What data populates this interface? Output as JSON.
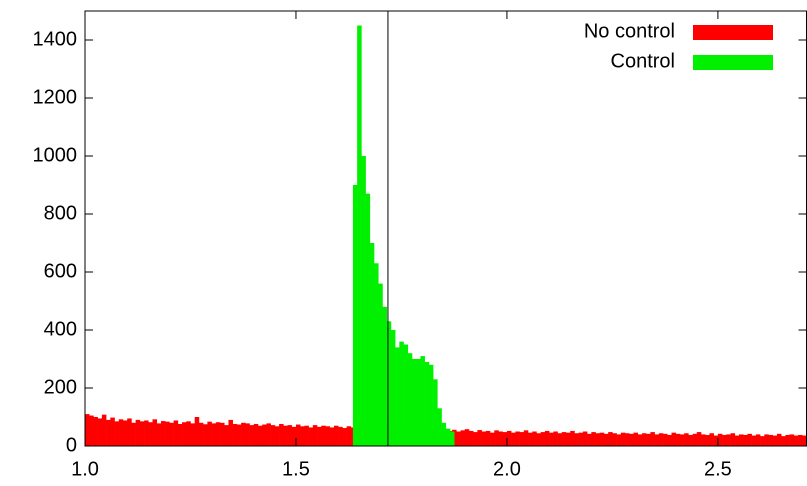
{
  "chart_data": {
    "type": "histogram",
    "xlim": [
      1.0,
      2.71
    ],
    "ylim": [
      0,
      1500
    ],
    "xticks": [
      {
        "value": 1.0,
        "label": "1.0"
      },
      1.5,
      {
        "value": 2.0,
        "label": "2.0"
      },
      2.5
    ],
    "yticks": [
      0,
      200,
      400,
      600,
      800,
      1000,
      1200,
      1400
    ],
    "vline": 1.718,
    "legend": "top-right",
    "series": [
      {
        "name": "No control",
        "color": "#ff0000",
        "bins": [
          1.0,
          1.01,
          1.02,
          1.03,
          1.04,
          1.05,
          1.06,
          1.07,
          1.08,
          1.09,
          1.1,
          1.11,
          1.12,
          1.13,
          1.14,
          1.15,
          1.16,
          1.17,
          1.18,
          1.19,
          1.2,
          1.21,
          1.22,
          1.23,
          1.24,
          1.25,
          1.26,
          1.27,
          1.28,
          1.29,
          1.3,
          1.31,
          1.32,
          1.33,
          1.34,
          1.35,
          1.36,
          1.37,
          1.38,
          1.39,
          1.4,
          1.41,
          1.42,
          1.43,
          1.44,
          1.45,
          1.46,
          1.47,
          1.48,
          1.49,
          1.5,
          1.51,
          1.52,
          1.53,
          1.54,
          1.55,
          1.56,
          1.57,
          1.58,
          1.59,
          1.6,
          1.61,
          1.62,
          1.63,
          1.64,
          1.65,
          1.66,
          1.67,
          1.68,
          1.69,
          1.7,
          1.71,
          1.72,
          1.73,
          1.74,
          1.75,
          1.76,
          1.77,
          1.78,
          1.79,
          1.8,
          1.81,
          1.82,
          1.83,
          1.84,
          1.85,
          1.86,
          1.87,
          1.88,
          1.89,
          1.9,
          1.91,
          1.92,
          1.93,
          1.94,
          1.95,
          1.96,
          1.97,
          1.98,
          1.99,
          2.0,
          2.01,
          2.02,
          2.03,
          2.04,
          2.05,
          2.06,
          2.07,
          2.08,
          2.09,
          2.1,
          2.11,
          2.12,
          2.13,
          2.14,
          2.15,
          2.16,
          2.17,
          2.18,
          2.19,
          2.2,
          2.21,
          2.22,
          2.23,
          2.24,
          2.25,
          2.26,
          2.27,
          2.28,
          2.29,
          2.3,
          2.31,
          2.32,
          2.33,
          2.34,
          2.35,
          2.36,
          2.37,
          2.38,
          2.39,
          2.4,
          2.41,
          2.42,
          2.43,
          2.44,
          2.45,
          2.46,
          2.47,
          2.48,
          2.49,
          2.5,
          2.51,
          2.52,
          2.53,
          2.54,
          2.55,
          2.56,
          2.57,
          2.58,
          2.59,
          2.6,
          2.61,
          2.62,
          2.63,
          2.64,
          2.65,
          2.66,
          2.67,
          2.68,
          2.69,
          2.7,
          2.71
        ],
        "values": [
          110,
          105,
          100,
          95,
          108,
          90,
          98,
          85,
          92,
          88,
          95,
          80,
          90,
          85,
          88,
          82,
          92,
          78,
          86,
          84,
          80,
          88,
          76,
          82,
          85,
          78,
          100,
          80,
          75,
          84,
          78,
          82,
          80,
          72,
          90,
          76,
          74,
          80,
          78,
          72,
          76,
          70,
          74,
          78,
          72,
          68,
          76,
          70,
          72,
          66,
          74,
          68,
          70,
          64,
          72,
          66,
          70,
          68,
          64,
          70,
          66,
          62,
          68,
          64,
          62,
          60,
          66,
          58,
          62,
          60,
          58,
          62,
          60,
          56,
          60,
          58,
          56,
          60,
          54,
          58,
          56,
          54,
          58,
          52,
          56,
          54,
          52,
          56,
          50,
          54,
          58,
          52,
          48,
          55,
          50,
          52,
          46,
          54,
          50,
          48,
          52,
          46,
          50,
          48,
          54,
          46,
          50,
          44,
          48,
          52,
          46,
          50,
          44,
          48,
          46,
          52,
          44,
          46,
          50,
          42,
          48,
          44,
          46,
          42,
          48,
          44,
          40,
          46,
          44,
          42,
          46,
          40,
          44,
          42,
          48,
          40,
          44,
          42,
          38,
          46,
          42,
          40,
          44,
          38,
          42,
          48,
          40,
          38,
          44,
          36,
          42,
          38,
          40,
          44,
          36,
          40,
          38,
          42,
          36,
          40,
          34,
          40,
          38,
          36,
          42,
          34,
          38,
          40,
          36,
          38,
          36
        ]
      },
      {
        "name": "Control",
        "color": "#00f000",
        "bins": [
          1.635,
          1.645,
          1.655,
          1.665,
          1.675,
          1.685,
          1.695,
          1.705,
          1.715,
          1.725,
          1.735,
          1.745,
          1.755,
          1.765,
          1.775,
          1.785,
          1.795,
          1.805,
          1.815,
          1.825,
          1.835,
          1.845,
          1.855,
          1.865,
          1.875
        ],
        "values": [
          900,
          1450,
          1000,
          870,
          700,
          630,
          560,
          480,
          430,
          400,
          340,
          360,
          350,
          320,
          300,
          300,
          310,
          290,
          280,
          230,
          130,
          80,
          60,
          50
        ]
      }
    ]
  }
}
